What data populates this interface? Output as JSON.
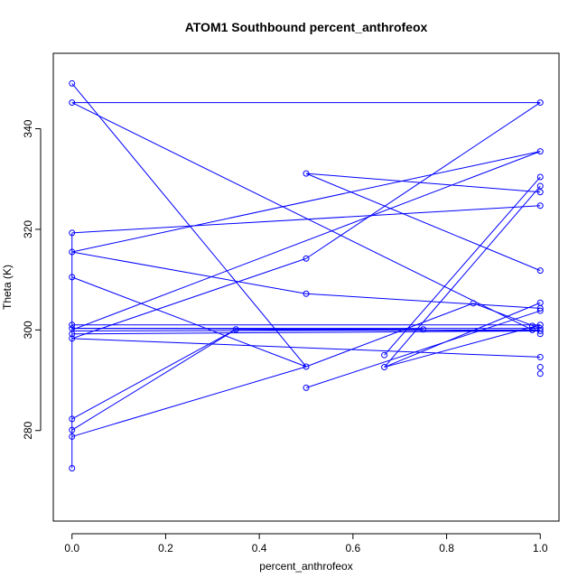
{
  "chart_data": {
    "type": "line",
    "title": "ATOM1 Southbound percent_anthrofeox",
    "xlabel": "percent_anthrofeox",
    "ylabel": "Theta (K)",
    "xlim": [
      -0.04,
      1.04
    ],
    "ylim": [
      262,
      355
    ],
    "x_ticks": [
      0.0,
      0.2,
      0.4,
      0.6,
      0.8,
      1.0
    ],
    "x_tick_labels": [
      "0.0",
      "0.2",
      "0.4",
      "0.6",
      "0.8",
      "1.0"
    ],
    "y_ticks": [
      280,
      300,
      320,
      340
    ],
    "y_tick_labels": [
      "280",
      "300",
      "320",
      "340"
    ],
    "grid": false,
    "color": "#0000ff",
    "markers": "open-circle",
    "points": [
      [
        0.0,
        349.0
      ],
      [
        0.0,
        345.2
      ],
      [
        0.0,
        319.3
      ],
      [
        0.0,
        315.5
      ],
      [
        0.0,
        310.5
      ],
      [
        0.0,
        301.0
      ],
      [
        0.0,
        300.3
      ],
      [
        0.0,
        299.2
      ],
      [
        0.0,
        298.3
      ],
      [
        0.0,
        282.3
      ],
      [
        0.0,
        280.1
      ],
      [
        0.0,
        278.8
      ],
      [
        0.0,
        272.5
      ],
      [
        0.35,
        300.1
      ],
      [
        0.5,
        331.1
      ],
      [
        0.5,
        314.2
      ],
      [
        0.5,
        307.2
      ],
      [
        0.5,
        292.7
      ],
      [
        0.5,
        288.5
      ],
      [
        0.667,
        295.0
      ],
      [
        0.667,
        292.6
      ],
      [
        0.75,
        300.1
      ],
      [
        0.857,
        305.3
      ],
      [
        0.983,
        300.8
      ],
      [
        0.983,
        300.0
      ],
      [
        1.0,
        345.2
      ],
      [
        1.0,
        335.5
      ],
      [
        1.0,
        330.4
      ],
      [
        1.0,
        328.6
      ],
      [
        1.0,
        327.4
      ],
      [
        1.0,
        324.7
      ],
      [
        1.0,
        311.8
      ],
      [
        1.0,
        305.4
      ],
      [
        1.0,
        304.3
      ],
      [
        1.0,
        303.8
      ],
      [
        1.0,
        301.0
      ],
      [
        1.0,
        300.3
      ],
      [
        1.0,
        299.8
      ],
      [
        1.0,
        299.2
      ],
      [
        1.0,
        294.6
      ],
      [
        1.0,
        292.6
      ],
      [
        1.0,
        291.3
      ]
    ],
    "series": [
      {
        "x": [
          0.0,
          0.5
        ],
        "y": [
          349.0,
          292.7
        ]
      },
      {
        "x": [
          0.0,
          0.983
        ],
        "y": [
          345.2,
          300.0
        ]
      },
      {
        "x": [
          0.0,
          1.0
        ],
        "y": [
          345.2,
          345.2
        ]
      },
      {
        "x": [
          0.0,
          1.0
        ],
        "y": [
          319.3,
          324.7
        ]
      },
      {
        "x": [
          0.0,
          1.0
        ],
        "y": [
          315.5,
          335.5
        ]
      },
      {
        "x": [
          0.0,
          0.5
        ],
        "y": [
          315.5,
          307.2
        ]
      },
      {
        "x": [
          0.5,
          1.0
        ],
        "y": [
          307.2,
          304.3
        ]
      },
      {
        "x": [
          0.0,
          0.5
        ],
        "y": [
          310.5,
          292.7
        ]
      },
      {
        "x": [
          0.0,
          1.0
        ],
        "y": [
          301.0,
          301.0
        ]
      },
      {
        "x": [
          0.0,
          1.0
        ],
        "y": [
          300.3,
          300.3
        ]
      },
      {
        "x": [
          0.0,
          1.0
        ],
        "y": [
          299.2,
          299.8
        ]
      },
      {
        "x": [
          0.0,
          1.0
        ],
        "y": [
          298.3,
          294.6
        ]
      },
      {
        "x": [
          0.0,
          0.5
        ],
        "y": [
          298.3,
          314.2
        ]
      },
      {
        "x": [
          0.5,
          1.0
        ],
        "y": [
          314.2,
          345.2
        ]
      },
      {
        "x": [
          0.0,
          0.35
        ],
        "y": [
          282.3,
          300.1
        ]
      },
      {
        "x": [
          0.35,
          1.0
        ],
        "y": [
          300.1,
          299.8
        ]
      },
      {
        "x": [
          0.0,
          0.35
        ],
        "y": [
          280.1,
          300.1
        ]
      },
      {
        "x": [
          0.0,
          0.5
        ],
        "y": [
          278.8,
          292.7
        ]
      },
      {
        "x": [
          0.5,
          0.857
        ],
        "y": [
          292.7,
          305.3
        ]
      },
      {
        "x": [
          0.857,
          1.0
        ],
        "y": [
          305.3,
          300.3
        ]
      },
      {
        "x": [
          0.0,
          0.0
        ],
        "y": [
          272.5,
          319.3
        ]
      },
      {
        "x": [
          0.5,
          1.0
        ],
        "y": [
          331.1,
          327.4
        ]
      },
      {
        "x": [
          0.5,
          1.0
        ],
        "y": [
          331.1,
          311.8
        ]
      },
      {
        "x": [
          0.5,
          1.0
        ],
        "y": [
          288.5,
          303.8
        ]
      },
      {
        "x": [
          0.667,
          1.0
        ],
        "y": [
          295.0,
          330.4
        ]
      },
      {
        "x": [
          0.667,
          1.0
        ],
        "y": [
          292.6,
          328.6
        ]
      },
      {
        "x": [
          0.667,
          1.0
        ],
        "y": [
          292.6,
          305.4
        ]
      },
      {
        "x": [
          0.667,
          1.0
        ],
        "y": [
          292.6,
          301.0
        ]
      },
      {
        "x": [
          0.0,
          0.75
        ],
        "y": [
          300.3,
          300.1
        ]
      },
      {
        "x": [
          0.0,
          1.0
        ],
        "y": [
          300.0,
          335.5
        ]
      },
      {
        "x": [
          0.0,
          1.0
        ],
        "y": [
          299.8,
          300.0
        ]
      }
    ]
  }
}
